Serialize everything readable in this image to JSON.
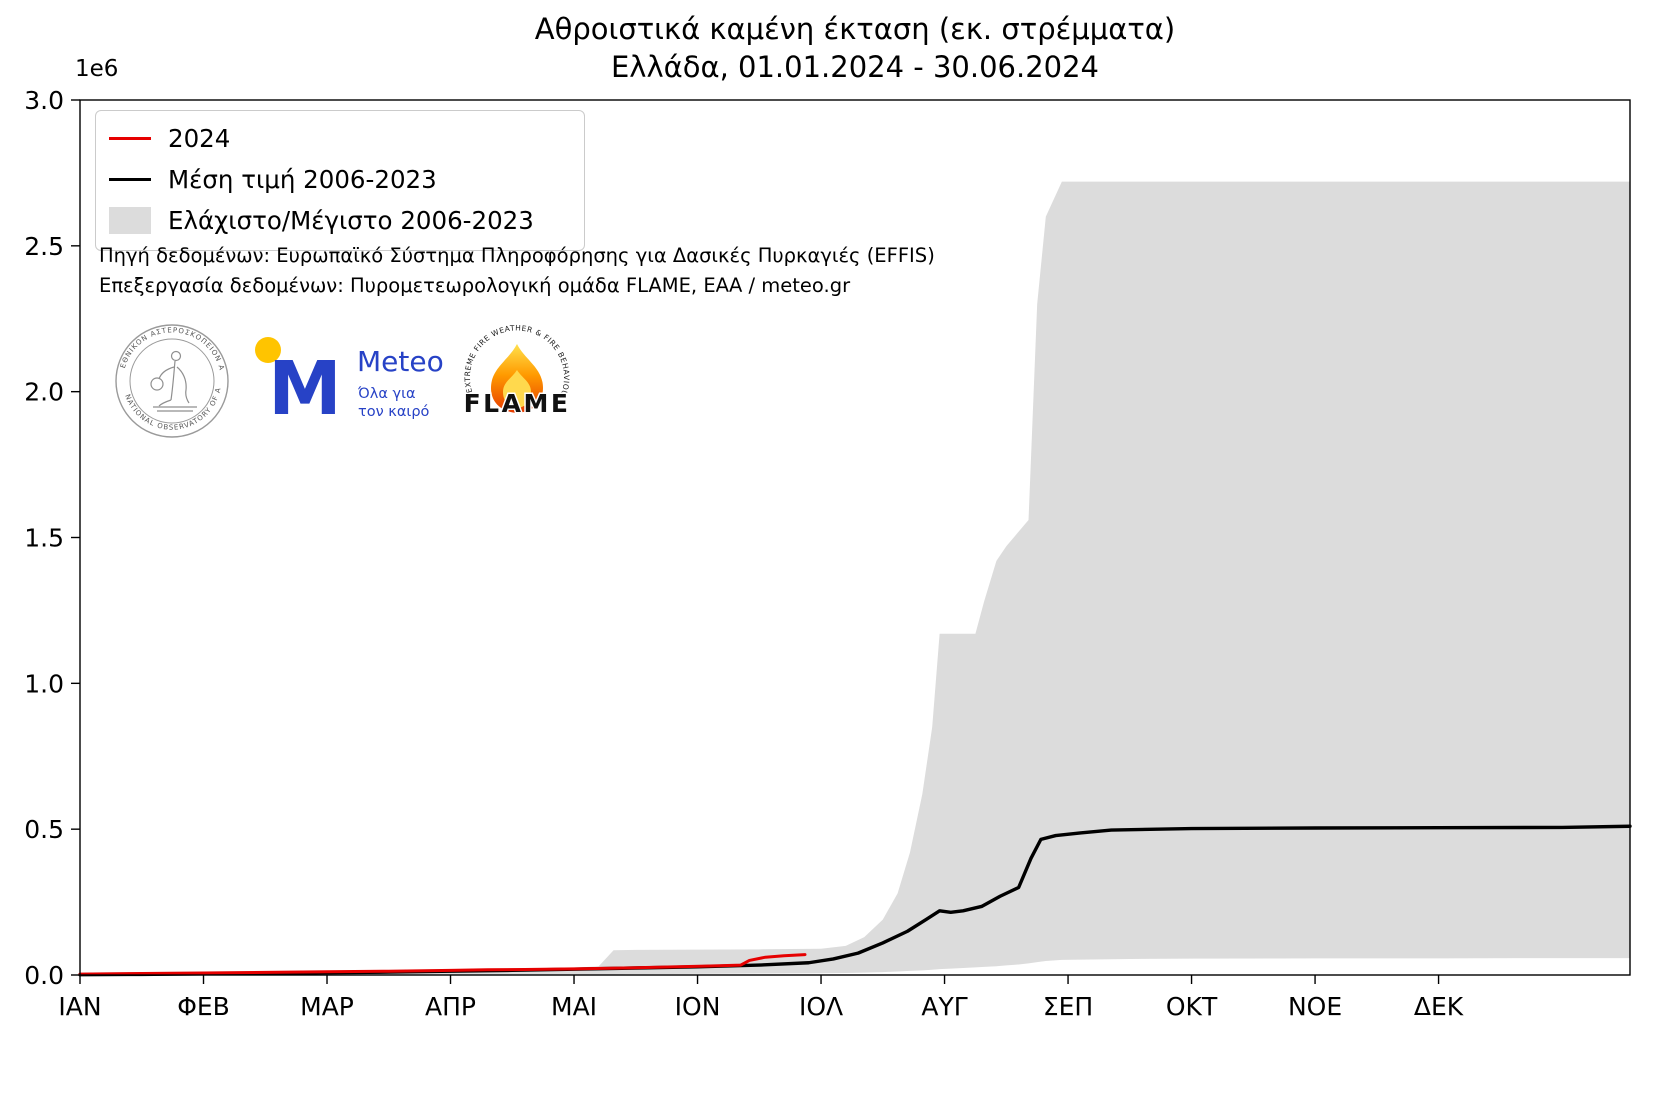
{
  "annotations": {
    "source_line1": "Πηγή δεδομένων: Ευρωπαϊκό Σύστημα Πληροφόρησης για Δασικές Πυρκαγιές (EFFIS)",
    "source_line2": "Επεξεργασία δεδομένων: Πυρομετεωρολογική ομάδα FLAME, ΕΑΑ / meteo.gr"
  },
  "logos": {
    "noa": {
      "arc_top": "ΕΘΝΙΚΟΝ ΑΣΤΕΡΟΣΚΟΠΕΙΟΝ ΑΘΗΝΩΝ",
      "arc_bottom": "NATIONAL OBSERVATORY OF ATHENS"
    },
    "meteo": {
      "wordmark": "Meteo",
      "monogram": "M",
      "tagline_line1": "Όλα για",
      "tagline_line2": "τον καιρό",
      "blue": "#2742c6",
      "yellow": "#ffc400"
    },
    "flame": {
      "wordmark": "FLAME",
      "arc_text": "EXTREME FIRE WEATHER & FIRE BEHAVIOUR"
    }
  },
  "chart_data": {
    "type": "line",
    "title": "Αθροιστικά καμένη έκταση (εκ. στρέμματα)",
    "subtitle": "Ελλάδα, 01.01.2024 - 30.06.2024",
    "y_offset_label": "1e6",
    "grid": false,
    "legend_position": "upper-left",
    "y_axis": {
      "min": 0,
      "max": 3.0,
      "unit_multiplier": 1000000,
      "ticks": [
        "0.0",
        "0.5",
        "1.0",
        "1.5",
        "2.0",
        "2.5",
        "3.0"
      ]
    },
    "x_axis": {
      "unit": "month-index (0 = Jan 1)",
      "domain_months": [
        0,
        12.55
      ],
      "tick_labels": [
        "ΙΑΝ",
        "ΦΕΒ",
        "ΜΑΡ",
        "ΑΠΡ",
        "ΜΑΙ",
        "ΙΟΝ",
        "ΙΟΛ",
        "ΑΥΓ",
        "ΣΕΠ",
        "ΟΚΤ",
        "ΝΟΕ",
        "ΔΕΚ"
      ]
    },
    "series": [
      {
        "name": "2024",
        "color": "#e60000",
        "width": 3,
        "x_month": [
          0,
          0.5,
          1,
          1.5,
          2,
          2.5,
          3,
          3.3,
          3.6,
          4,
          4.4,
          4.8,
          5.1,
          5.35,
          5.42,
          5.55,
          5.7,
          5.87
        ],
        "y": [
          0.003,
          0.005,
          0.007,
          0.009,
          0.011,
          0.013,
          0.016,
          0.018,
          0.019,
          0.021,
          0.024,
          0.028,
          0.031,
          0.034,
          0.05,
          0.061,
          0.066,
          0.07
        ]
      },
      {
        "name": "Μέση τιμή 2006-2023",
        "color": "#000000",
        "width": 3.4,
        "x_month": [
          0,
          0.5,
          1,
          1.5,
          2,
          2.5,
          3,
          3.5,
          4,
          4.5,
          5,
          5.5,
          5.9,
          6.1,
          6.3,
          6.5,
          6.7,
          6.85,
          6.96,
          7.05,
          7.15,
          7.3,
          7.45,
          7.6,
          7.7,
          7.78,
          7.9,
          8.1,
          8.35,
          9,
          10,
          11,
          12,
          12.55
        ],
        "y": [
          0.001,
          0.002,
          0.004,
          0.006,
          0.008,
          0.01,
          0.013,
          0.016,
          0.02,
          0.024,
          0.028,
          0.034,
          0.042,
          0.055,
          0.075,
          0.11,
          0.15,
          0.19,
          0.22,
          0.215,
          0.22,
          0.235,
          0.27,
          0.3,
          0.4,
          0.465,
          0.478,
          0.487,
          0.497,
          0.502,
          0.504,
          0.505,
          0.506,
          0.51
        ]
      }
    ],
    "band": {
      "name": "Ελάχιστο/Μέγιστο 2006-2023",
      "color": "#dcdcdc",
      "x_month": [
        0,
        1,
        2,
        3,
        4,
        4.2,
        4.32,
        4.5,
        5,
        5.5,
        6,
        6.2,
        6.35,
        6.5,
        6.62,
        6.72,
        6.82,
        6.9,
        6.96,
        7.05,
        7.25,
        7.32,
        7.42,
        7.5,
        7.6,
        7.68,
        7.75,
        7.82,
        7.95,
        8.5,
        9,
        10,
        11,
        12,
        12.55
      ],
      "y_max": [
        0.008,
        0.012,
        0.015,
        0.02,
        0.025,
        0.03,
        0.085,
        0.086,
        0.087,
        0.088,
        0.09,
        0.1,
        0.13,
        0.19,
        0.28,
        0.42,
        0.62,
        0.85,
        1.17,
        1.17,
        1.17,
        1.28,
        1.42,
        1.47,
        1.52,
        1.56,
        2.3,
        2.6,
        2.72,
        2.72,
        2.72,
        2.72,
        2.72,
        2.72,
        2.72
      ],
      "y_min": [
        0,
        0,
        0.001,
        0.001,
        0.002,
        0.002,
        0.002,
        0.003,
        0.004,
        0.005,
        0.006,
        0.007,
        0.008,
        0.01,
        0.012,
        0.014,
        0.016,
        0.018,
        0.02,
        0.022,
        0.026,
        0.028,
        0.03,
        0.033,
        0.036,
        0.04,
        0.044,
        0.048,
        0.052,
        0.055,
        0.056,
        0.057,
        0.057,
        0.058,
        0.058
      ]
    }
  }
}
